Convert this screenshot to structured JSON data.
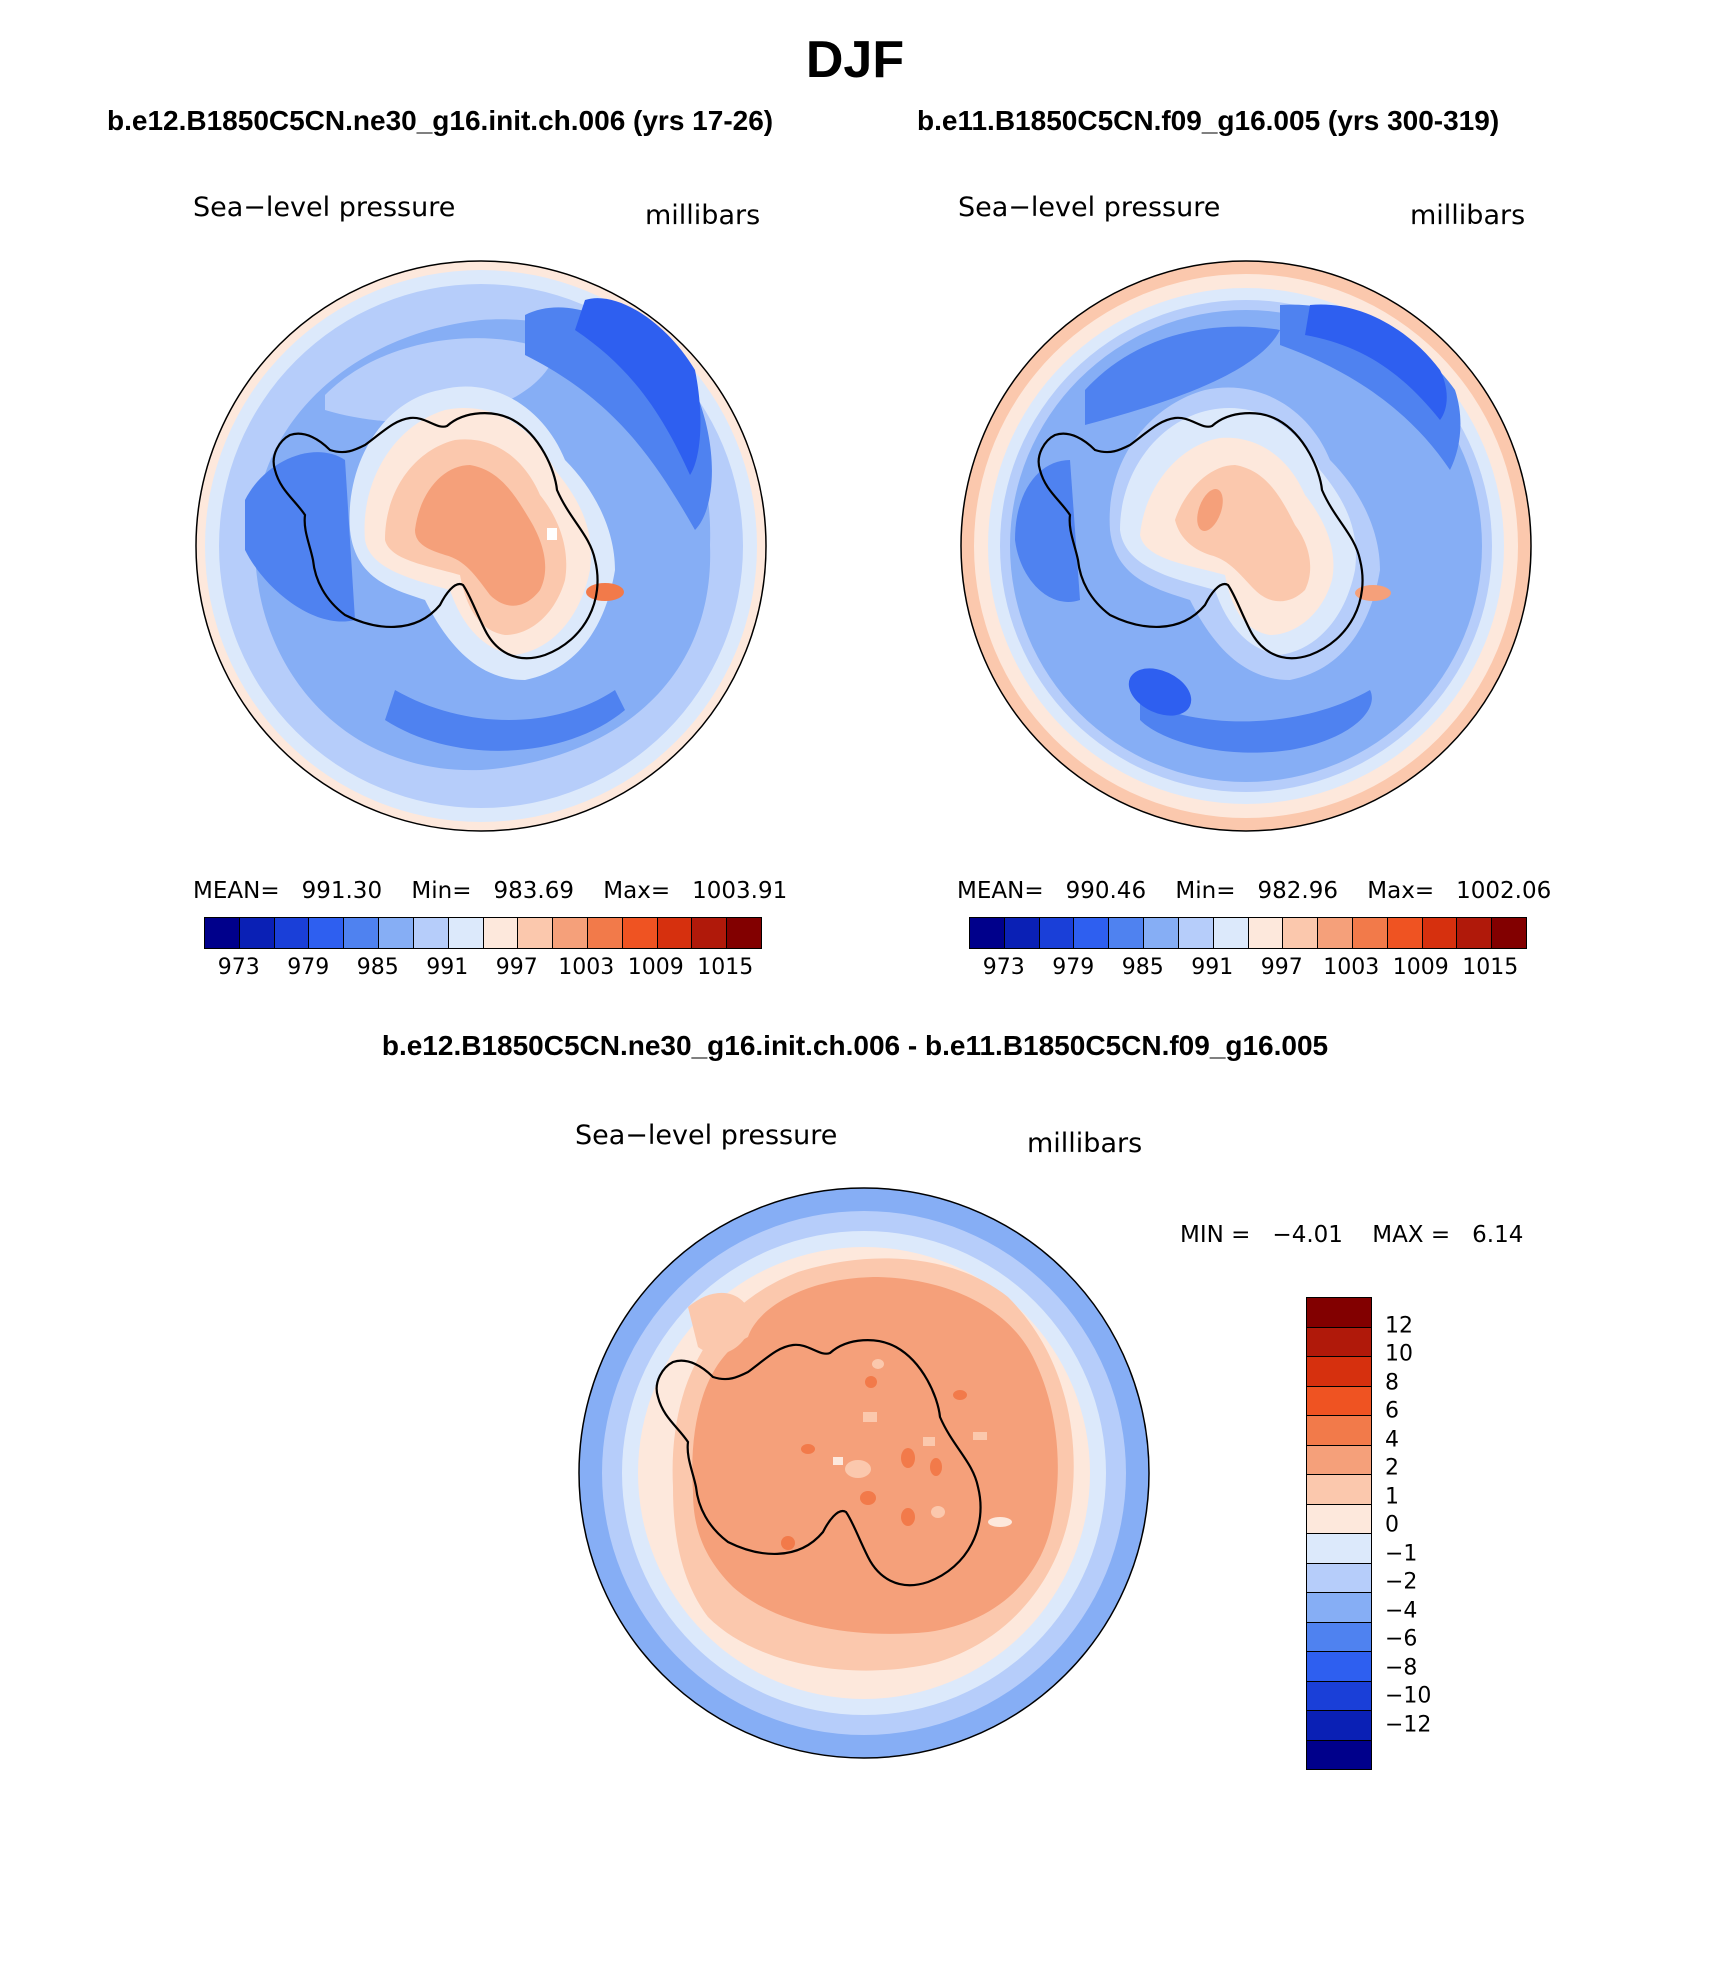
{
  "title": "DJF",
  "panels": [
    {
      "case_title": "b.e12.B1850C5CN.ne30_g16.init.ch.006 (yrs 17-26)",
      "variable": "Sea−level pressure",
      "units": "millibars",
      "stats": {
        "mean_label": "MEAN=",
        "mean": "991.30",
        "min_label": "Min=",
        "min": "983.69",
        "max_label": "Max=",
        "max": "1003.91"
      }
    },
    {
      "case_title": "b.e11.B1850C5CN.f09_g16.005 (yrs 300-319)",
      "variable": "Sea−level pressure",
      "units": "millibars",
      "stats": {
        "mean_label": "MEAN=",
        "mean": "990.46",
        "min_label": "Min=",
        "min": "982.96",
        "max_label": "Max=",
        "max": "1002.06"
      }
    }
  ],
  "diff": {
    "title": "b.e12.B1850C5CN.ne30_g16.init.ch.006 - b.e11.B1850C5CN.f09_g16.005",
    "variable": "Sea−level pressure",
    "units": "millibars",
    "min_label": "MIN =",
    "min": "−4.01",
    "max_label": "MAX =",
    "max": "6.14"
  },
  "colorbar_abs": {
    "tick_labels": [
      "973",
      "979",
      "985",
      "991",
      "997",
      "1003",
      "1009",
      "1015"
    ],
    "colors": [
      "#00008b",
      "#0a20b5",
      "#1a3fd8",
      "#2e5ff0",
      "#4f82f0",
      "#86aef5",
      "#b6cdfa",
      "#dce9fb",
      "#fde8dc",
      "#fbc8ad",
      "#f5a07a",
      "#f27a4a",
      "#ef5322",
      "#d6300e",
      "#b0190a",
      "#820000"
    ]
  },
  "colorbar_diff": {
    "tick_labels": [
      "12",
      "10",
      "8",
      "6",
      "4",
      "2",
      "1",
      "0",
      "−1",
      "−2",
      "−4",
      "−6",
      "−8",
      "−10",
      "−12"
    ],
    "colors": [
      "#820000",
      "#b0190a",
      "#d6300e",
      "#ef5322",
      "#f27a4a",
      "#f5a07a",
      "#fbc8ad",
      "#fde8dc",
      "#dce9fb",
      "#b6cdfa",
      "#86aef5",
      "#4f82f0",
      "#2e5ff0",
      "#1a3fd8",
      "#0a20b5",
      "#00008b"
    ]
  }
}
